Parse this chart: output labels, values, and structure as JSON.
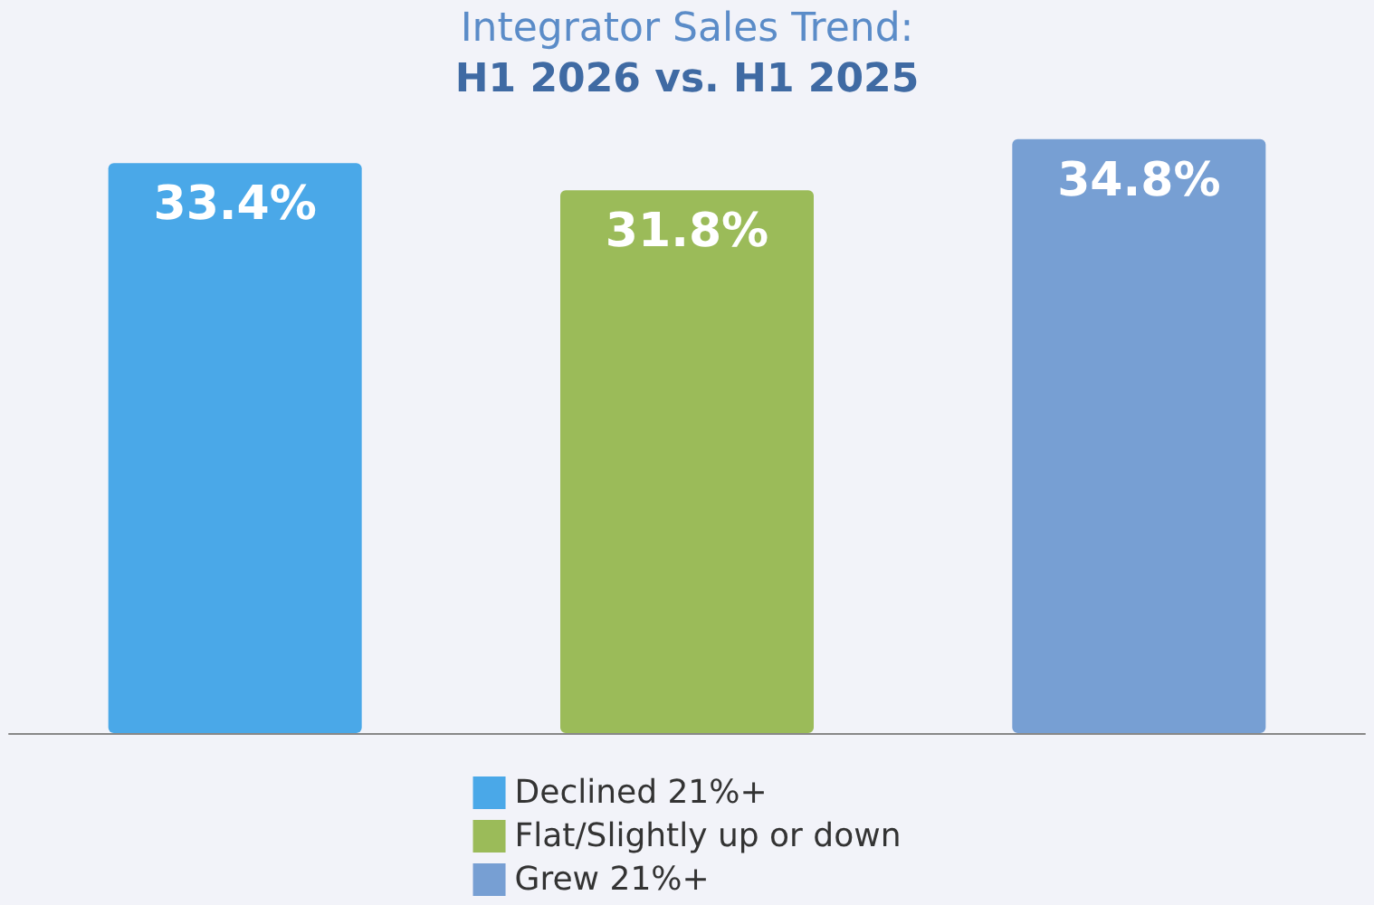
{
  "chart_data": {
    "type": "bar",
    "title": "Integrator Sales Trend:",
    "subtitle": "H1 2026 vs. H1 2025",
    "categories": [
      null,
      null,
      null
    ],
    "series": [
      {
        "name": "Declined 21%+",
        "color": "#4aa8e8",
        "values": [
          33.4,
          null,
          null
        ],
        "value_labels": [
          "33.4%",
          null,
          null
        ]
      },
      {
        "name": "Flat/Slightly up or down",
        "color": "#9bbb59",
        "values": [
          null,
          31.8,
          null
        ],
        "value_labels": [
          null,
          "31.8%",
          null
        ]
      },
      {
        "name": "Grew 21%+",
        "color": "#779fd3",
        "values": [
          null,
          null,
          34.8
        ],
        "value_labels": [
          null,
          null,
          "34.8%"
        ]
      }
    ],
    "stacked": true,
    "legend": "bottom",
    "tick_labels": false
  }
}
